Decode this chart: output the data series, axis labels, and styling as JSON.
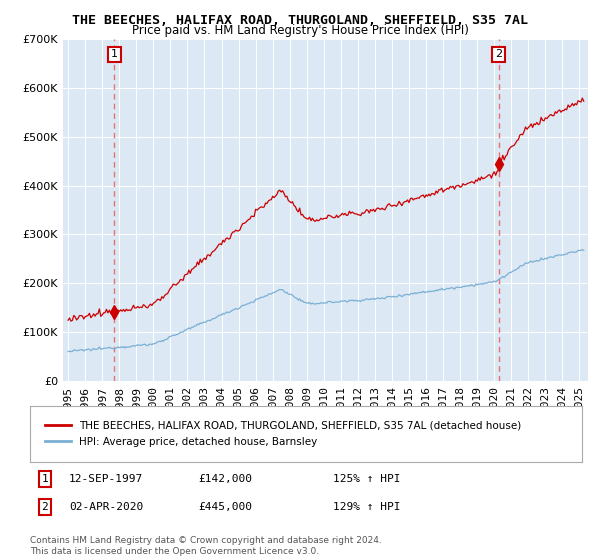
{
  "title": "THE BEECHES, HALIFAX ROAD, THURGOLAND, SHEFFIELD, S35 7AL",
  "subtitle": "Price paid vs. HM Land Registry's House Price Index (HPI)",
  "legend_line1": "THE BEECHES, HALIFAX ROAD, THURGOLAND, SHEFFIELD, S35 7AL (detached house)",
  "legend_line2": "HPI: Average price, detached house, Barnsley",
  "sale1_date": "12-SEP-1997",
  "sale1_price": 142000,
  "sale1_hpi_pct": "125%",
  "sale2_date": "02-APR-2020",
  "sale2_price": 445000,
  "sale2_hpi_pct": "129%",
  "footnote": "Contains HM Land Registry data © Crown copyright and database right 2024.\nThis data is licensed under the Open Government Licence v3.0.",
  "property_color": "#cc0000",
  "hpi_color": "#7bafd4",
  "plot_bg_color": "#dce9f5",
  "background_color": "#ffffff",
  "grid_color": "#ffffff",
  "ylim": [
    0,
    700000
  ],
  "xlim_start": 1994.7,
  "xlim_end": 2025.5,
  "sale1_year": 1997.708,
  "sale2_year": 2020.25
}
